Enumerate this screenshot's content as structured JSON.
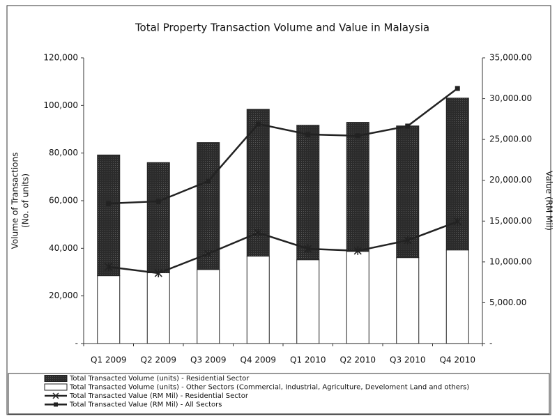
{
  "chart_data": {
    "type": "bar",
    "title": "Total Property Transaction Volume and Value in Malaysia",
    "ylabel": [
      "Volume of Transactions",
      "(No. of units)"
    ],
    "y2label": "Value (RM Mil)",
    "categories": [
      "Q1 2009",
      "Q2 2009",
      "Q3 2009",
      "Q4 2009",
      "Q1 2010",
      "Q2 2010",
      "Q3 2010",
      "Q4 2010"
    ],
    "series": [
      {
        "name": "Total Transacted Volume (units) - Residential Sector",
        "type": "bar",
        "color": "#2b2b2b",
        "values": [
          50700,
          46300,
          53300,
          61700,
          56500,
          54200,
          55300,
          63800
        ]
      },
      {
        "name": "Total Transacted Volume (units) - Other Sectors (Commercial, Industrial, Agriculture, Develoment Land and others)",
        "type": "bar",
        "color": "#ffffff",
        "values": [
          28500,
          29700,
          31100,
          36700,
          35200,
          38700,
          36100,
          39300
        ]
      },
      {
        "name": "Total Transacted Value (RM Mil) - Residential Sector",
        "type": "line",
        "axis": "y2",
        "color": "#222222",
        "marker": "x",
        "values": [
          9390,
          8620,
          11010,
          13580,
          11610,
          11360,
          12640,
          14940
        ]
      },
      {
        "name": "Total Transacted Value (RM Mil) - All Sectors",
        "type": "line",
        "axis": "y2",
        "color": "#222222",
        "marker": "square",
        "values": [
          17160,
          17420,
          19900,
          26900,
          25620,
          25450,
          26640,
          31250
        ]
      }
    ],
    "stacked": true,
    "ylim": [
      0,
      120000
    ],
    "yticks": [
      {
        "value": 0,
        "label": "-"
      },
      {
        "value": 20000,
        "label": "20,000"
      },
      {
        "value": 40000,
        "label": "40,000"
      },
      {
        "value": 60000,
        "label": "60,000"
      },
      {
        "value": 80000,
        "label": "80,000"
      },
      {
        "value": 100000,
        "label": "100,000"
      },
      {
        "value": 120000,
        "label": "120,000"
      }
    ],
    "y2lim": [
      0,
      35000
    ],
    "y2ticks": [
      {
        "value": 0,
        "label": "-"
      },
      {
        "value": 5000,
        "label": "5,000.00"
      },
      {
        "value": 10000,
        "label": "10,000.00"
      },
      {
        "value": 15000,
        "label": "15,000.00"
      },
      {
        "value": 20000,
        "label": "20,000.00"
      },
      {
        "value": 25000,
        "label": "25,000.00"
      },
      {
        "value": 30000,
        "label": "30,000.00"
      },
      {
        "value": 35000,
        "label": "35,000.00"
      }
    ],
    "legend": "bottom"
  }
}
